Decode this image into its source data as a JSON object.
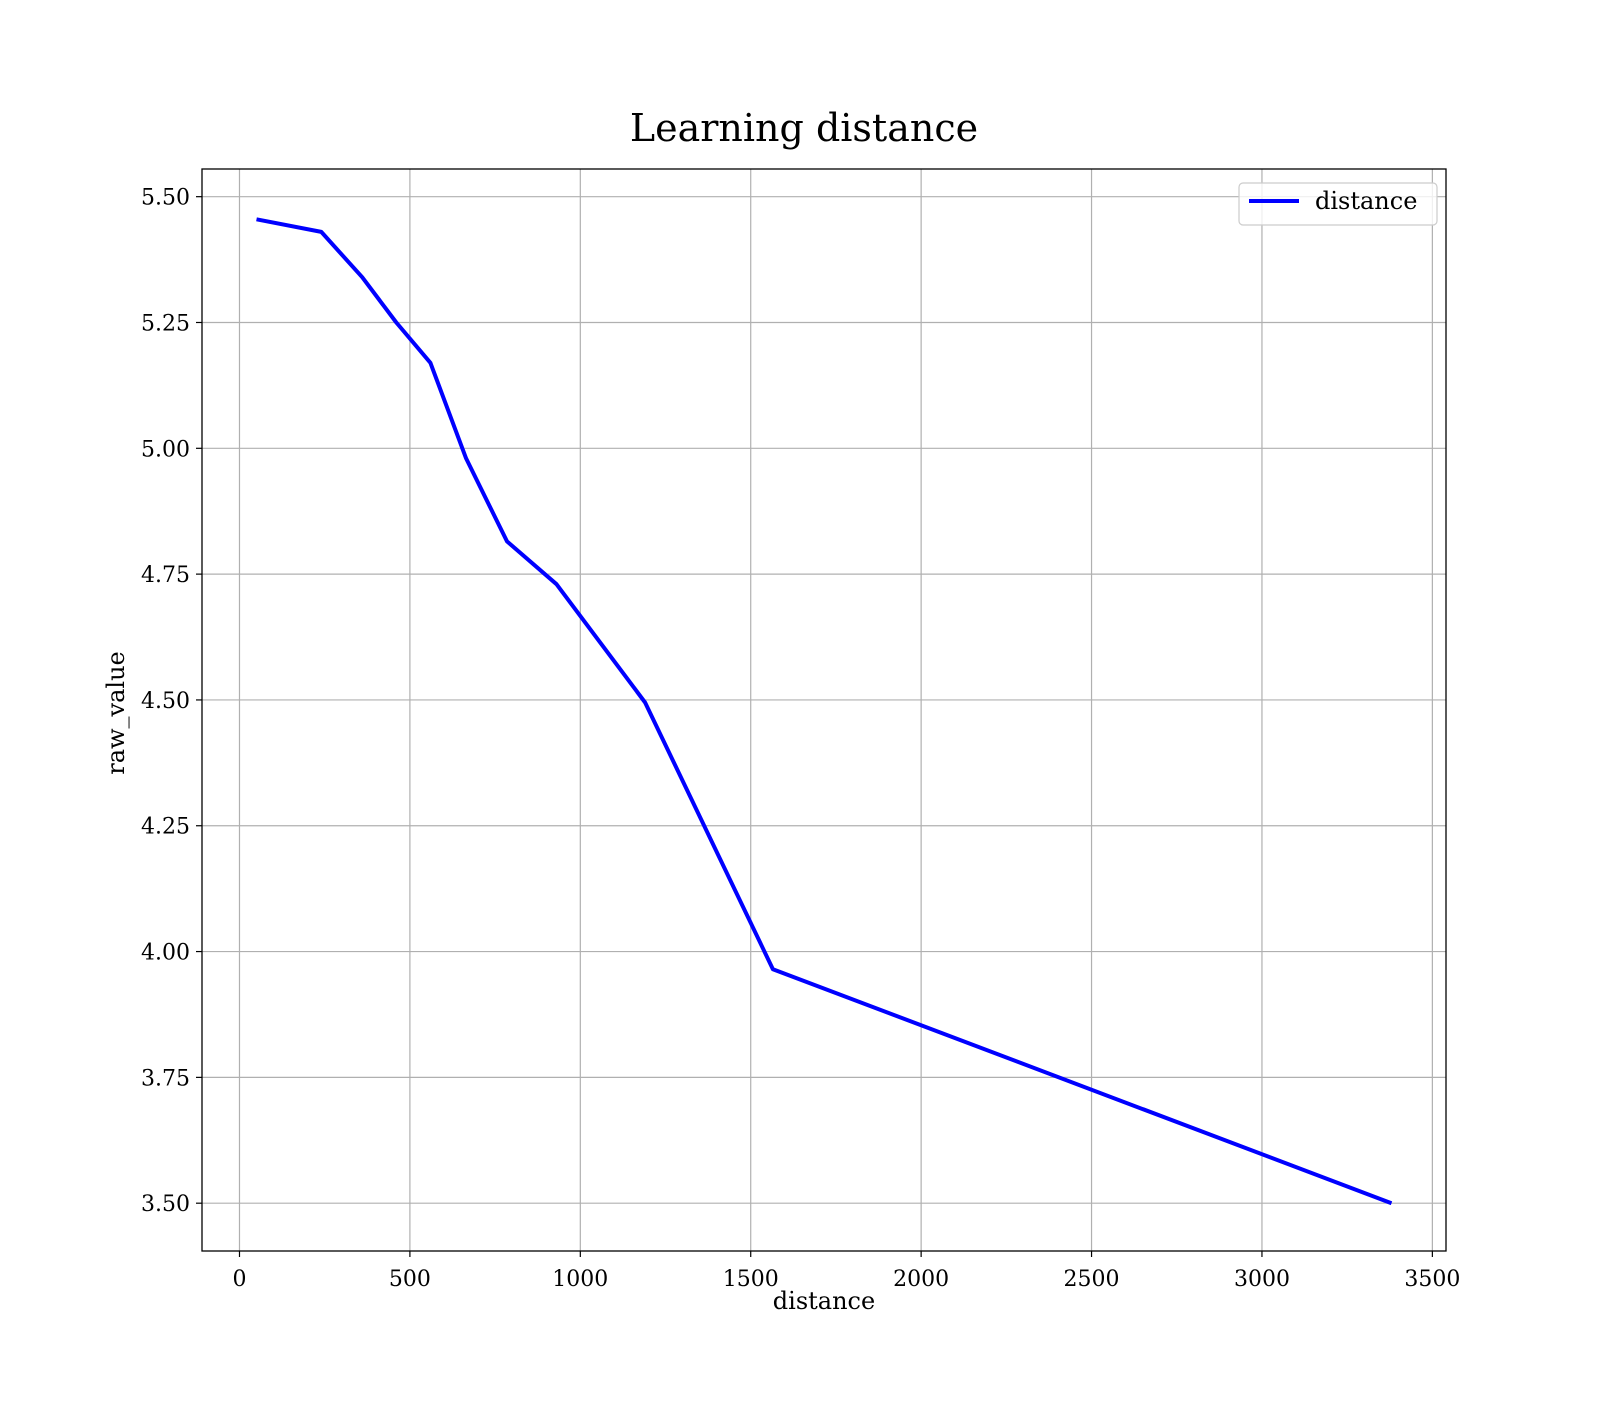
{
  "chart_data": {
    "type": "line",
    "title": "Learning distance",
    "xlabel": "distance",
    "ylabel": "raw_value",
    "xlim": [
      -110,
      3540
    ],
    "ylim": [
      3.405,
      5.555
    ],
    "xticks": [
      0,
      500,
      1000,
      1500,
      2000,
      2500,
      3000,
      3500
    ],
    "xtick_labels": [
      "0",
      "500",
      "1000",
      "1500",
      "2000",
      "2500",
      "3000",
      "3500"
    ],
    "yticks": [
      3.5,
      3.75,
      4.0,
      4.25,
      4.5,
      4.75,
      5.0,
      5.25,
      5.5
    ],
    "ytick_labels": [
      "3.50",
      "3.75",
      "4.00",
      "4.25",
      "4.50",
      "4.75",
      "5.00",
      "5.25",
      "5.50"
    ],
    "grid": true,
    "legend_position": "top-right",
    "series": [
      {
        "name": "distance",
        "color": "#0000ff",
        "x": [
          50,
          240,
          360,
          460,
          560,
          665,
          785,
          930,
          1190,
          1565,
          3380
        ],
        "y": [
          5.455,
          5.43,
          5.34,
          5.25,
          5.17,
          4.98,
          4.815,
          4.73,
          4.495,
          3.965,
          3.5
        ]
      }
    ]
  }
}
